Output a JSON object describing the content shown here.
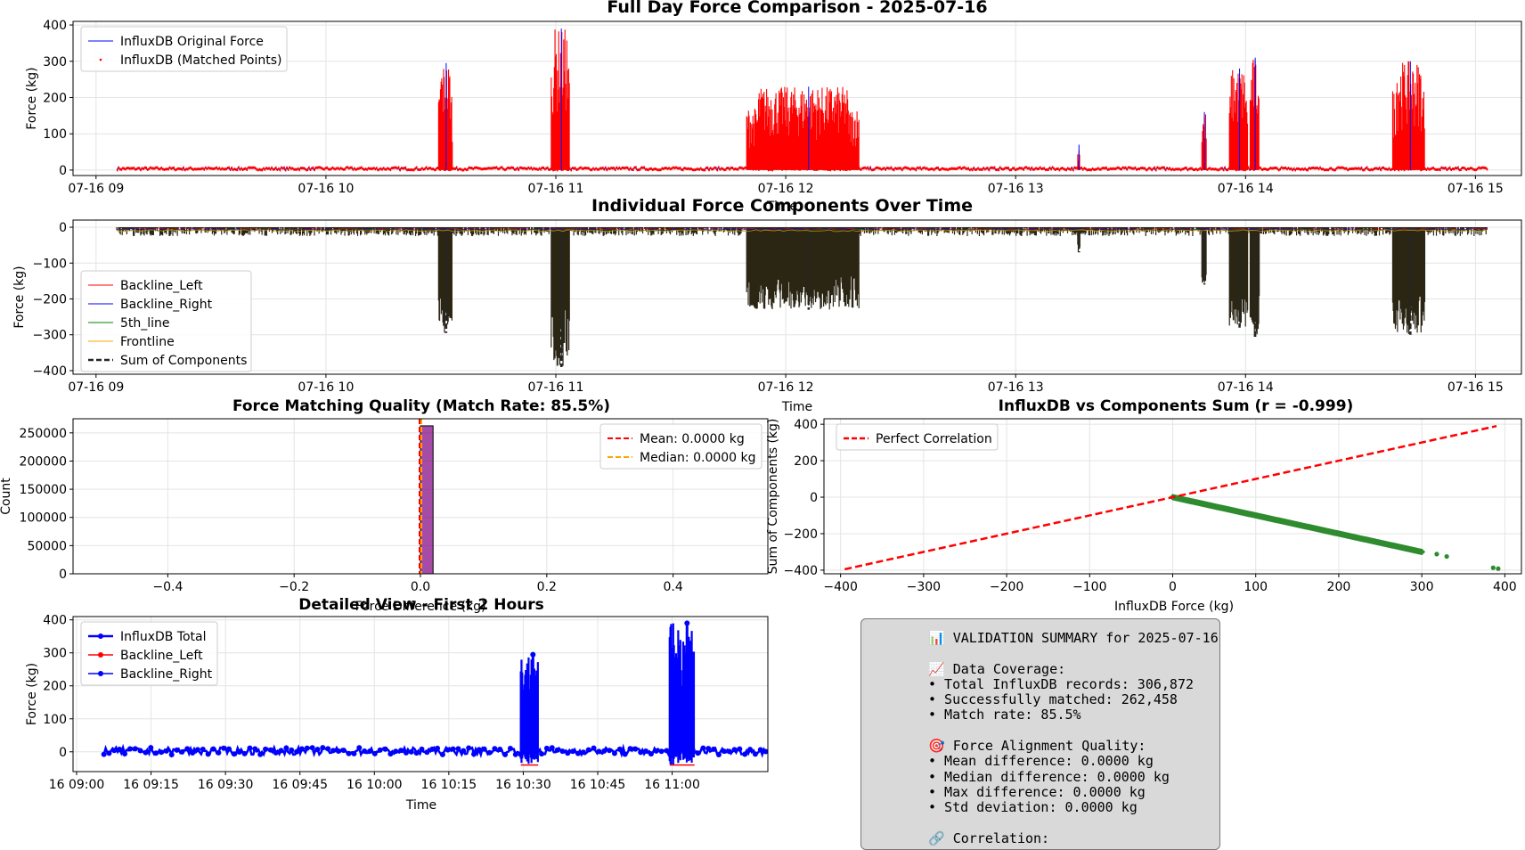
{
  "colors": {
    "blue": "#0000ff",
    "red": "#ff0000",
    "green": "#008000",
    "orange": "#ffa500",
    "purple": "#800080",
    "dark": "#262626",
    "fill_dark": "#2b2514",
    "scatter_green": "#2e8b2e"
  },
  "chart_data": [
    {
      "type": "line",
      "title": "Full Day Force Comparison - 2025-07-16",
      "xlabel": "Time",
      "ylabel": "Force (kg)",
      "ylim": [
        -15,
        410
      ],
      "xlim_hours": [
        8.9,
        15.2
      ],
      "grid": true,
      "legend_position": "upper left",
      "x_ticks": [
        {
          "t": 9,
          "label": "07-16 09"
        },
        {
          "t": 10,
          "label": "07-16 10"
        },
        {
          "t": 11,
          "label": "07-16 11"
        },
        {
          "t": 12,
          "label": "07-16 12"
        },
        {
          "t": 13,
          "label": "07-16 13"
        },
        {
          "t": 14,
          "label": "07-16 14"
        },
        {
          "t": 15,
          "label": "07-16 15"
        }
      ],
      "y_ticks": [
        0,
        100,
        200,
        300,
        400
      ],
      "series": [
        {
          "name": "InfluxDB Original Force",
          "style": "line",
          "color": "blue"
        },
        {
          "name": "InfluxDB (Matched Points)",
          "style": "points",
          "color": "red"
        }
      ],
      "bursts": [
        {
          "t0": 10.49,
          "t1": 10.55,
          "peak": 295
        },
        {
          "t0": 10.98,
          "t1": 11.06,
          "peak": 390
        },
        {
          "t0": 11.83,
          "t1": 12.32,
          "peak": 230
        },
        {
          "t0": 13.27,
          "t1": 13.28,
          "peak": 70
        },
        {
          "t0": 13.81,
          "t1": 13.83,
          "peak": 160
        },
        {
          "t0": 13.93,
          "t1": 14.01,
          "peak": 280
        },
        {
          "t0": 14.02,
          "t1": 14.06,
          "peak": 310
        },
        {
          "t0": 14.64,
          "t1": 14.78,
          "peak": 300
        }
      ],
      "baseline_range": [
        9.09,
        15.05
      ]
    },
    {
      "type": "line",
      "title": "Individual Force Components Over Time",
      "xlabel": "Time",
      "ylabel": "Force (kg)",
      "ylim": [
        -410,
        20
      ],
      "xlim_hours": [
        8.9,
        15.2
      ],
      "grid": true,
      "legend_position": "lower left",
      "x_ticks": [
        {
          "t": 9,
          "label": "07-16 09"
        },
        {
          "t": 10,
          "label": "07-16 10"
        },
        {
          "t": 11,
          "label": "07-16 11"
        },
        {
          "t": 12,
          "label": "07-16 12"
        },
        {
          "t": 13,
          "label": "07-16 13"
        },
        {
          "t": 14,
          "label": "07-16 14"
        },
        {
          "t": 15,
          "label": "07-16 15"
        }
      ],
      "y_ticks": [
        0,
        -100,
        -200,
        -300,
        -400
      ],
      "series": [
        {
          "name": "Backline_Left",
          "style": "line",
          "color": "red"
        },
        {
          "name": "Backline_Right",
          "style": "line",
          "color": "blue"
        },
        {
          "name": "5th_line",
          "style": "line",
          "color": "green"
        },
        {
          "name": "Frontline",
          "style": "line",
          "color": "orange"
        },
        {
          "name": "Sum of Components",
          "style": "dashed",
          "color": "dark"
        }
      ]
    },
    {
      "type": "bar",
      "title": "Force Matching Quality (Match Rate: 85.5%)",
      "xlabel": "Force Difference (kg)",
      "ylabel": "Count",
      "xlim": [
        -0.55,
        0.55
      ],
      "ylim": [
        0,
        275000
      ],
      "grid": true,
      "legend_position": "upper right",
      "x_ticks": [
        -0.4,
        -0.2,
        0.0,
        0.2,
        0.4
      ],
      "x_tick_labels": [
        "−0.4",
        "−0.2",
        "0.0",
        "0.2",
        "0.4"
      ],
      "y_ticks": [
        0,
        50000,
        100000,
        150000,
        200000,
        250000
      ],
      "bins": [
        {
          "x0": 0.0,
          "x1": 0.02,
          "count": 262458
        }
      ],
      "lines": [
        {
          "name": "Mean: 0.0000 kg",
          "x": 0.0,
          "color": "red",
          "style": "dashed"
        },
        {
          "name": "Median: 0.0000 kg",
          "x": 0.0,
          "color": "orange",
          "style": "dashed"
        }
      ]
    },
    {
      "type": "scatter",
      "title": "InfluxDB vs Components Sum (r = -0.999)",
      "xlabel": "InfluxDB Force (kg)",
      "ylabel": "Sum of Components (kg)",
      "xlim": [
        -420,
        420
      ],
      "ylim": [
        -420,
        430
      ],
      "grid": true,
      "legend_position": "upper left",
      "x_ticks": [
        -400,
        -300,
        -200,
        -100,
        0,
        100,
        200,
        300,
        400
      ],
      "x_tick_labels": [
        "−400",
        "−300",
        "−200",
        "−100",
        "0",
        "100",
        "200",
        "300",
        "400"
      ],
      "y_ticks": [
        -400,
        -200,
        0,
        200,
        400
      ],
      "y_tick_labels": [
        "−400",
        "−200",
        "0",
        "200",
        "400"
      ],
      "reference_line": {
        "name": "Perfect Correlation",
        "x": [
          -395,
          390
        ],
        "y": [
          -395,
          390
        ]
      },
      "points": [
        [
          0,
          0
        ],
        [
          50,
          -50
        ],
        [
          100,
          -100
        ],
        [
          150,
          -150
        ],
        [
          200,
          -200
        ],
        [
          250,
          -250
        ],
        [
          300,
          -300
        ],
        [
          318,
          -312
        ],
        [
          330,
          -325
        ],
        [
          386,
          -387
        ],
        [
          392,
          -392
        ]
      ]
    },
    {
      "type": "line",
      "title": "Detailed View - First 2 Hours",
      "xlabel": "Time",
      "ylabel": "Force (kg)",
      "ylim": [
        -60,
        410
      ],
      "xlim_minutes": [
        540,
        680
      ],
      "grid": true,
      "legend_position": "upper left",
      "x_ticks": [
        {
          "m": 540,
          "label": "16 09:00"
        },
        {
          "m": 555,
          "label": "16 09:15"
        },
        {
          "m": 570,
          "label": "16 09:30"
        },
        {
          "m": 585,
          "label": "16 09:45"
        },
        {
          "m": 600,
          "label": "16 10:00"
        },
        {
          "m": 615,
          "label": "16 10:15"
        },
        {
          "m": 630,
          "label": "16 10:30"
        },
        {
          "m": 645,
          "label": "16 10:45"
        },
        {
          "m": 660,
          "label": "16 11:00"
        }
      ],
      "y_ticks": [
        0,
        100,
        200,
        300,
        400
      ],
      "series": [
        {
          "name": "InfluxDB Total",
          "color": "blue"
        },
        {
          "name": "Backline_Left",
          "color": "red"
        },
        {
          "name": "Backline_Right",
          "color": "blue"
        }
      ],
      "bursts": [
        {
          "m0": 629.5,
          "m1": 633.0,
          "peak": 295
        },
        {
          "m0": 659.5,
          "m1": 664.5,
          "peak": 390
        }
      ]
    }
  ],
  "summary_lines": [
    "📊 VALIDATION SUMMARY for 2025-07-16",
    "",
    "📈 Data Coverage:",
    "• Total InfluxDB records: 306,872",
    "• Successfully matched: 262,458",
    "• Match rate: 85.5%",
    "",
    "🎯 Force Alignment Quality:",
    "• Mean difference: 0.0000 kg",
    "• Median difference: 0.0000 kg",
    "• Max difference: 0.0000 kg",
    "• Std deviation: 0.0000 kg",
    "",
    "🔗 Correlation:"
  ]
}
